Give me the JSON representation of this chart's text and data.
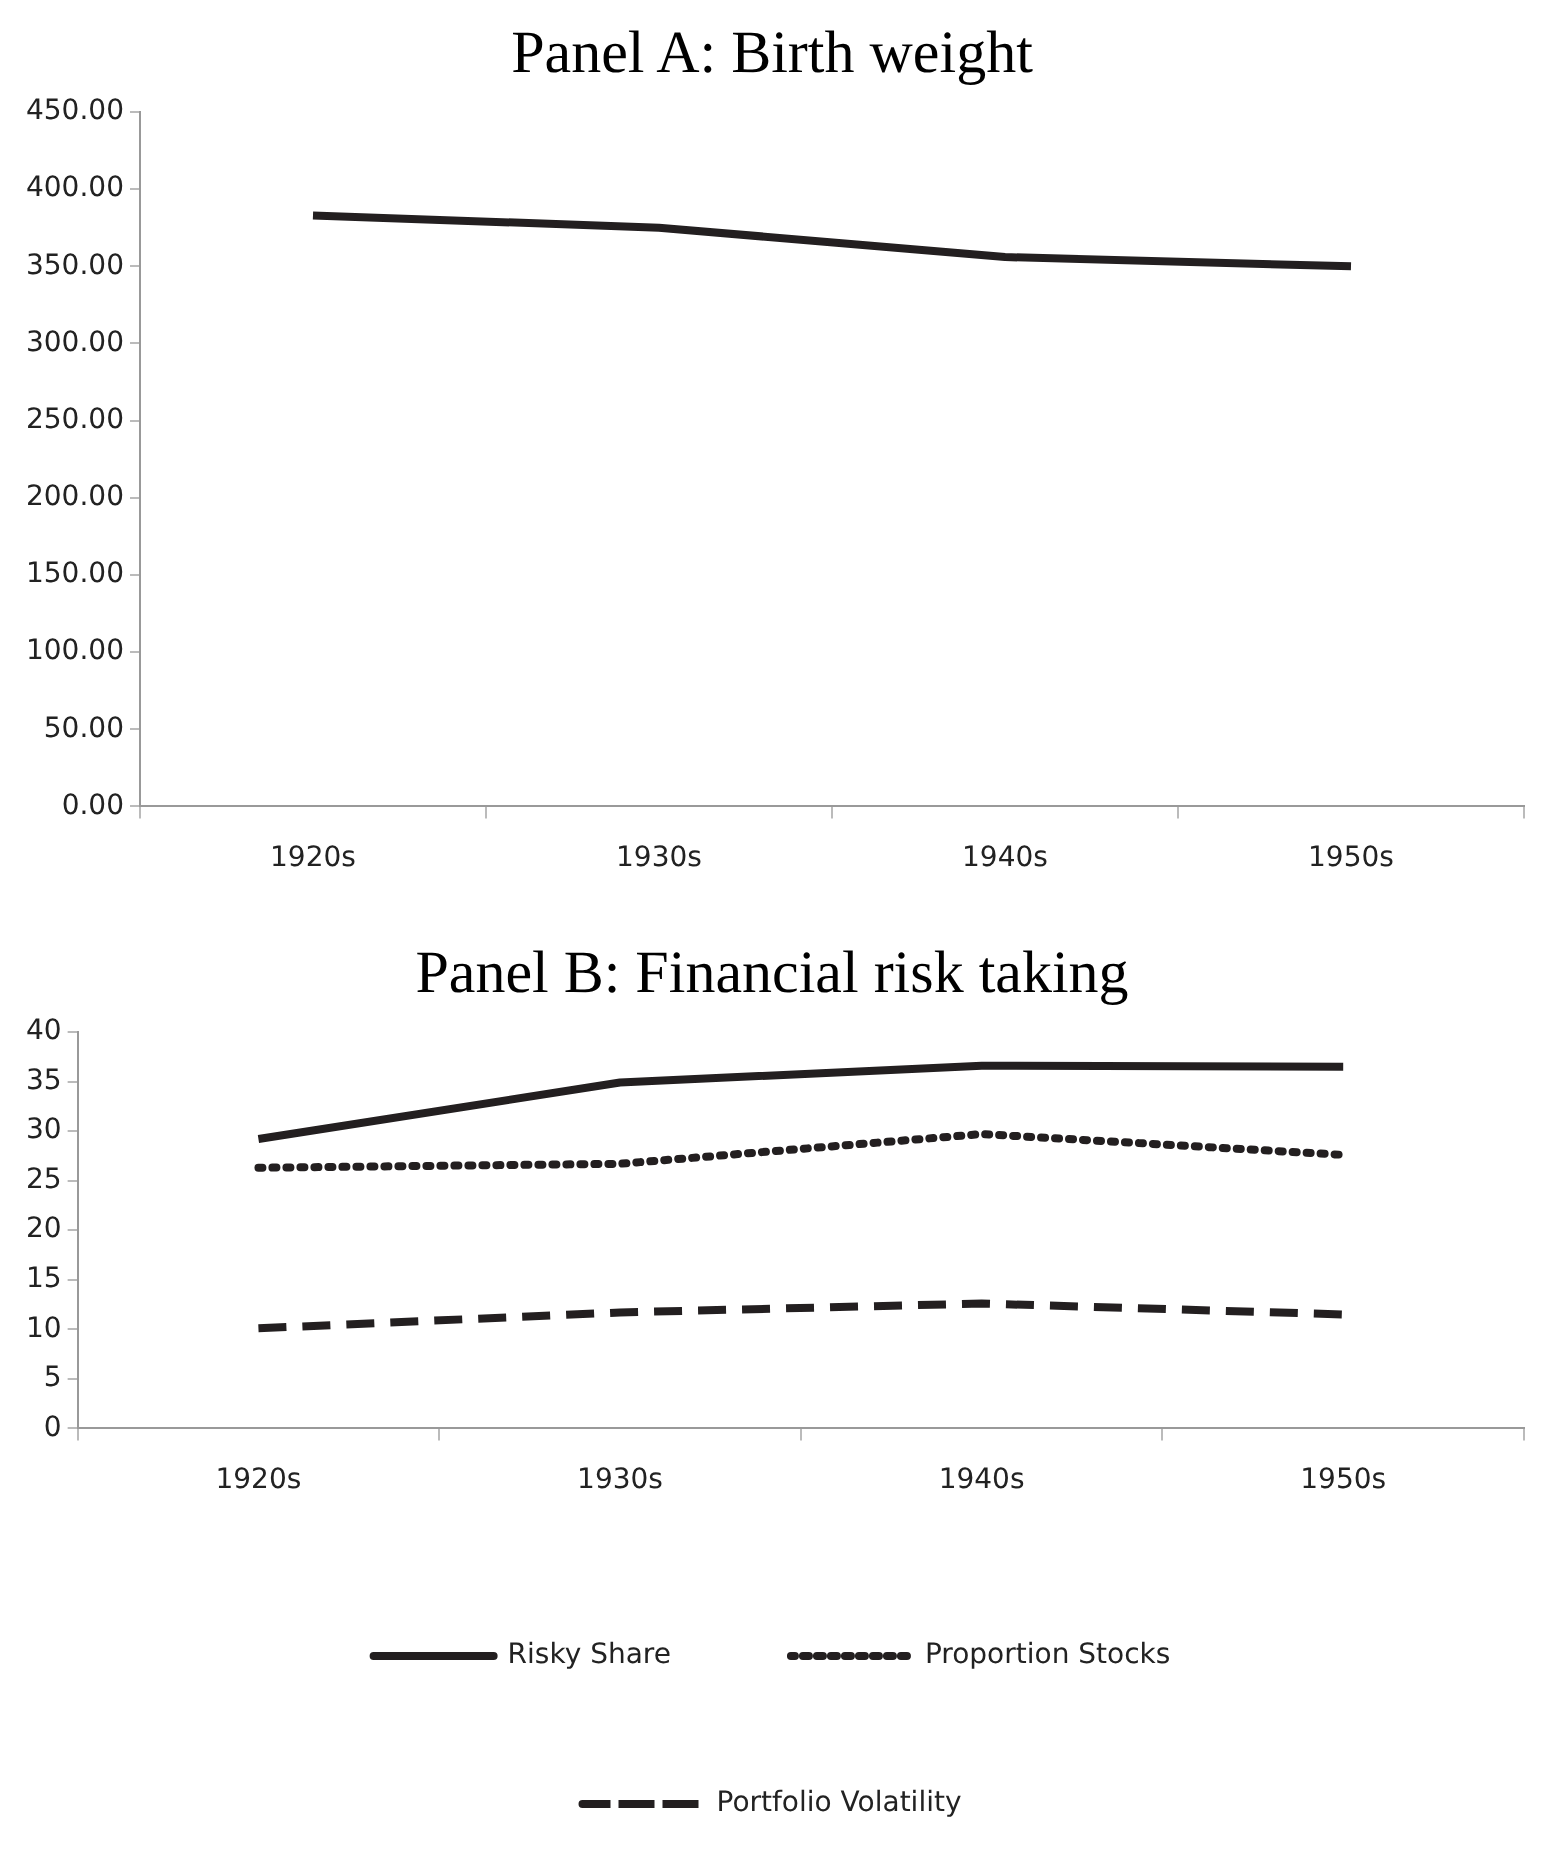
{
  "chart_data": [
    {
      "type": "line",
      "title": "Panel A: Birth weight",
      "categories": [
        "1920s",
        "1930s",
        "1940s",
        "1950s"
      ],
      "series": [
        {
          "color": "#231f20",
          "line_style": "solid",
          "values": [
            383,
            375,
            356,
            350
          ]
        }
      ],
      "ylim": [
        0,
        450
      ],
      "yticks": [
        {
          "value": 0,
          "label": "0.00"
        },
        {
          "value": 50,
          "label": "50.00"
        },
        {
          "value": 100,
          "label": "100.00"
        },
        {
          "value": 150,
          "label": "150.00"
        },
        {
          "value": 200,
          "label": "200.00"
        },
        {
          "value": 250,
          "label": "250.00"
        },
        {
          "value": 300,
          "label": "300.00"
        },
        {
          "value": 350,
          "label": "350.00"
        },
        {
          "value": 400,
          "label": "400.00"
        },
        {
          "value": 450,
          "label": "450.00"
        }
      ],
      "grid": false,
      "legend": false,
      "marker": "none"
    },
    {
      "type": "line",
      "title": "Panel B: Financial risk taking",
      "categories": [
        "1920s",
        "1930s",
        "1940s",
        "1950s"
      ],
      "series": [
        {
          "name": "Risky Share",
          "color": "#231f20",
          "line_style": "solid",
          "values": [
            29.2,
            34.9,
            36.6,
            36.5
          ]
        },
        {
          "name": "Proportion Stocks",
          "color": "#231f20",
          "line_style": "dotted",
          "values": [
            26.3,
            26.7,
            29.7,
            27.6
          ]
        },
        {
          "name": "Portfolio Volatility",
          "color": "#231f20",
          "line_style": "dashed",
          "values": [
            10.1,
            11.7,
            12.6,
            11.5
          ]
        }
      ],
      "ylim": [
        0,
        40
      ],
      "yticks": [
        0,
        5,
        10,
        15,
        20,
        25,
        30,
        35,
        40
      ],
      "grid": false,
      "legend": "bottom",
      "marker": "none"
    }
  ]
}
